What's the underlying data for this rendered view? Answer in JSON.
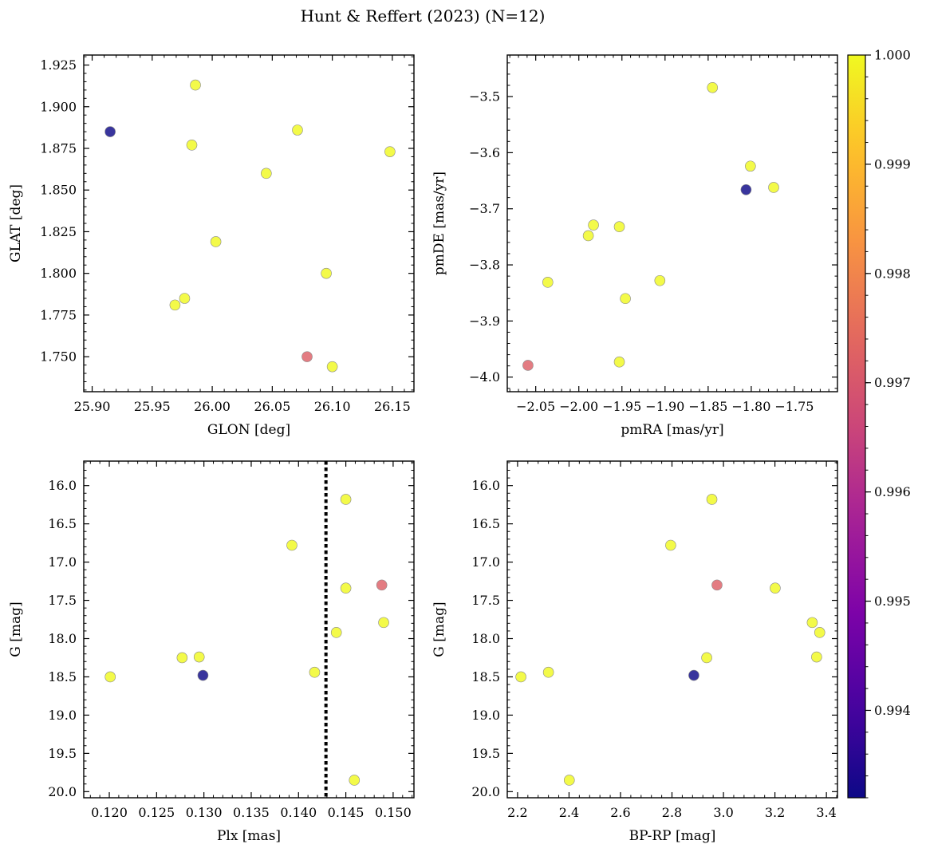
{
  "title": "Hunt & Reffert (2023) (N=12)",
  "colorbar": {
    "min": 0.9932,
    "max": 1.0,
    "ticks": [
      0.994,
      0.995,
      0.996,
      0.997,
      0.998,
      0.999,
      1.0
    ],
    "tick_labels": [
      "0.994",
      "0.995",
      "0.996",
      "0.997",
      "0.998",
      "0.999",
      "1.000"
    ],
    "colormap": "plasma"
  },
  "chart_data": [
    {
      "type": "scatter",
      "xlabel": "GLON [deg]",
      "ylabel": "GLAT [deg]",
      "xlim": [
        25.893,
        26.168
      ],
      "ylim": [
        1.729,
        1.931
      ],
      "xticks": [
        25.9,
        25.95,
        26.0,
        26.05,
        26.1,
        26.15
      ],
      "xtick_labels": [
        "25.90",
        "25.95",
        "26.00",
        "26.05",
        "26.10",
        "26.15"
      ],
      "yticks": [
        1.75,
        1.775,
        1.8,
        1.825,
        1.85,
        1.875,
        1.9,
        1.925
      ],
      "ytick_labels": [
        "1.750",
        "1.775",
        "1.800",
        "1.825",
        "1.850",
        "1.875",
        "1.900",
        "1.925"
      ],
      "points": [
        {
          "x": 25.915,
          "y": 1.885,
          "c": 0.9932
        },
        {
          "x": 25.986,
          "y": 1.913,
          "c": 1.0
        },
        {
          "x": 25.983,
          "y": 1.877,
          "c": 1.0
        },
        {
          "x": 26.071,
          "y": 1.886,
          "c": 1.0
        },
        {
          "x": 26.148,
          "y": 1.873,
          "c": 1.0
        },
        {
          "x": 26.045,
          "y": 1.86,
          "c": 1.0
        },
        {
          "x": 26.003,
          "y": 1.819,
          "c": 1.0
        },
        {
          "x": 26.095,
          "y": 1.8,
          "c": 1.0
        },
        {
          "x": 25.969,
          "y": 1.781,
          "c": 1.0
        },
        {
          "x": 25.977,
          "y": 1.785,
          "c": 1.0
        },
        {
          "x": 26.079,
          "y": 1.75,
          "c": 0.9972
        },
        {
          "x": 26.1,
          "y": 1.744,
          "c": 1.0
        }
      ]
    },
    {
      "type": "scatter",
      "xlabel": "pmRA [mas/yr]",
      "ylabel": "pmDE [mas/yr]",
      "xlim": [
        -2.083,
        -1.7
      ],
      "ylim": [
        -4.026,
        -3.426
      ],
      "xticks": [
        -2.05,
        -2.0,
        -1.95,
        -1.9,
        -1.85,
        -1.8,
        -1.75
      ],
      "xtick_labels": [
        "−2.05",
        "−2.00",
        "−1.95",
        "−1.90",
        "−1.85",
        "−1.80",
        "−1.75"
      ],
      "yticks": [
        -4.0,
        -3.9,
        -3.8,
        -3.7,
        -3.6,
        -3.5
      ],
      "ytick_labels": [
        "−4.0",
        "−3.9",
        "−3.8",
        "−3.7",
        "−3.6",
        "−3.5"
      ],
      "points": [
        {
          "x": -1.845,
          "y": -3.484,
          "c": 1.0
        },
        {
          "x": -1.801,
          "y": -3.624,
          "c": 1.0
        },
        {
          "x": -1.806,
          "y": -3.666,
          "c": 0.9932
        },
        {
          "x": -1.774,
          "y": -3.662,
          "c": 1.0
        },
        {
          "x": -1.983,
          "y": -3.729,
          "c": 1.0
        },
        {
          "x": -1.989,
          "y": -3.748,
          "c": 1.0
        },
        {
          "x": -1.953,
          "y": -3.732,
          "c": 1.0
        },
        {
          "x": -2.036,
          "y": -3.831,
          "c": 1.0
        },
        {
          "x": -1.906,
          "y": -3.828,
          "c": 1.0
        },
        {
          "x": -1.946,
          "y": -3.86,
          "c": 1.0
        },
        {
          "x": -1.953,
          "y": -3.973,
          "c": 1.0
        },
        {
          "x": -2.059,
          "y": -3.979,
          "c": 0.9972
        }
      ]
    },
    {
      "type": "scatter",
      "xlabel": "Plx [mas]",
      "ylabel": "G [mag]",
      "xlim": [
        0.1173,
        0.1522
      ],
      "ylim": [
        20.08,
        15.68
      ],
      "xticks": [
        0.12,
        0.125,
        0.13,
        0.135,
        0.14,
        0.145,
        0.15
      ],
      "xtick_labels": [
        "0.120",
        "0.125",
        "0.130",
        "0.135",
        "0.140",
        "0.145",
        "0.150"
      ],
      "yticks": [
        16.0,
        16.5,
        17.0,
        17.5,
        18.0,
        18.5,
        19.0,
        19.5,
        20.0
      ],
      "ytick_labels": [
        "16.0",
        "16.5",
        "17.0",
        "17.5",
        "18.0",
        "18.5",
        "19.0",
        "19.5",
        "20.0"
      ],
      "vline": 0.1429,
      "points": [
        {
          "x": 0.145,
          "y": 16.18,
          "c": 1.0
        },
        {
          "x": 0.1393,
          "y": 16.78,
          "c": 1.0
        },
        {
          "x": 0.145,
          "y": 17.34,
          "c": 1.0
        },
        {
          "x": 0.1488,
          "y": 17.3,
          "c": 0.9972
        },
        {
          "x": 0.149,
          "y": 17.79,
          "c": 1.0
        },
        {
          "x": 0.144,
          "y": 17.92,
          "c": 1.0
        },
        {
          "x": 0.1277,
          "y": 18.25,
          "c": 1.0
        },
        {
          "x": 0.1295,
          "y": 18.24,
          "c": 1.0
        },
        {
          "x": 0.1417,
          "y": 18.44,
          "c": 1.0
        },
        {
          "x": 0.1201,
          "y": 18.5,
          "c": 1.0
        },
        {
          "x": 0.1299,
          "y": 18.48,
          "c": 0.9932
        },
        {
          "x": 0.1459,
          "y": 19.85,
          "c": 1.0
        }
      ]
    },
    {
      "type": "scatter",
      "xlabel": "BP-RP [mag]",
      "ylabel": "G [mag]",
      "xlim": [
        2.16,
        3.443
      ],
      "ylim": [
        20.08,
        15.68
      ],
      "xticks": [
        2.2,
        2.4,
        2.6,
        2.8,
        3.0,
        3.2,
        3.4
      ],
      "xtick_labels": [
        "2.2",
        "2.4",
        "2.6",
        "2.8",
        "3.0",
        "3.2",
        "3.4"
      ],
      "yticks": [
        16.0,
        16.5,
        17.0,
        17.5,
        18.0,
        18.5,
        19.0,
        19.5,
        20.0
      ],
      "ytick_labels": [
        "16.0",
        "16.5",
        "17.0",
        "17.5",
        "18.0",
        "18.5",
        "19.0",
        "19.5",
        "20.0"
      ],
      "points": [
        {
          "x": 2.955,
          "y": 16.18,
          "c": 1.0
        },
        {
          "x": 2.795,
          "y": 16.78,
          "c": 1.0
        },
        {
          "x": 2.975,
          "y": 17.3,
          "c": 0.9972
        },
        {
          "x": 3.201,
          "y": 17.34,
          "c": 1.0
        },
        {
          "x": 3.345,
          "y": 17.79,
          "c": 1.0
        },
        {
          "x": 3.374,
          "y": 17.92,
          "c": 1.0
        },
        {
          "x": 2.935,
          "y": 18.25,
          "c": 1.0
        },
        {
          "x": 3.362,
          "y": 18.24,
          "c": 1.0
        },
        {
          "x": 2.32,
          "y": 18.44,
          "c": 1.0
        },
        {
          "x": 2.213,
          "y": 18.5,
          "c": 1.0
        },
        {
          "x": 2.885,
          "y": 18.48,
          "c": 0.9932
        },
        {
          "x": 2.401,
          "y": 19.85,
          "c": 1.0
        }
      ]
    }
  ]
}
